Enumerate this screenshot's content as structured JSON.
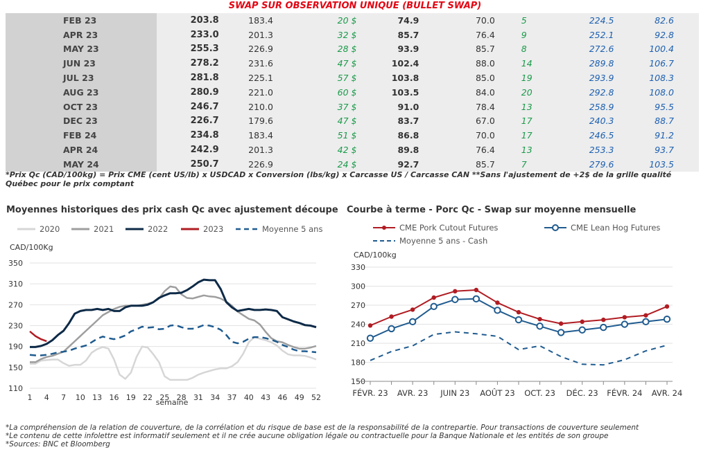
{
  "swap": {
    "title": "SWAP SUR OBSERVATION UNIQUE (BULLET SWAP)",
    "rows": [
      [
        "FEB 23",
        "203.8",
        "183.4",
        "20 $",
        "74.9",
        "70.0",
        "5",
        "224.5",
        "82.6"
      ],
      [
        "APR 23",
        "233.0",
        "201.3",
        "32 $",
        "85.7",
        "76.4",
        "9",
        "252.1",
        "92.8"
      ],
      [
        "MAY 23",
        "255.3",
        "226.9",
        "28 $",
        "93.9",
        "85.7",
        "8",
        "272.6",
        "100.4"
      ],
      [
        "JUN 23",
        "278.2",
        "231.6",
        "47 $",
        "102.4",
        "88.0",
        "14",
        "289.8",
        "106.7"
      ],
      [
        "JUL 23",
        "281.8",
        "225.1",
        "57 $",
        "103.8",
        "85.0",
        "19",
        "293.9",
        "108.3"
      ],
      [
        "AUG 23",
        "280.9",
        "221.0",
        "60 $",
        "103.5",
        "84.0",
        "20",
        "292.8",
        "108.0"
      ],
      [
        "OCT 23",
        "246.7",
        "210.0",
        "37 $",
        "91.0",
        "78.4",
        "13",
        "258.9",
        "95.5"
      ],
      [
        "DEC 23",
        "226.7",
        "179.6",
        "47 $",
        "83.7",
        "67.0",
        "17",
        "240.3",
        "88.7"
      ],
      [
        "FEB 24",
        "234.8",
        "183.4",
        "51 $",
        "86.8",
        "70.0",
        "17",
        "246.5",
        "91.2"
      ],
      [
        "APR 24",
        "242.9",
        "201.3",
        "42 $",
        "89.8",
        "76.4",
        "13",
        "253.3",
        "93.7"
      ],
      [
        "MAY 24",
        "250.7",
        "226.9",
        "24 $",
        "92.7",
        "85.7",
        "7",
        "279.6",
        "103.5"
      ]
    ],
    "note": "*Prix Qc (CAD/100kg) = Prix CME (cent US/lb) x USDCAD x Conversion (lbs/kg) x Carcasse US / Carcasse CAN **Sans l'ajustement de +2$ de la grille qualité Québec pour le prix comptant"
  },
  "disclaimer": [
    "*La compréhension de la relation de couverture, de la corrélation et du risque de base est de la responsabilité de la contrepartie. Pour transactions de couverture seulement",
    "*Le contenu de cette infolettre est informatif seulement et il ne crée aucune obligation légale ou contractuelle pour la Banque Nationale et les entités de son groupe",
    "*Sources: BNC et Bloomberg"
  ],
  "chart_data": [
    {
      "type": "line",
      "title": "Moyennes historiques des prix cash Qc avec ajustement découpe",
      "ylabel": "CAD/100Kg",
      "xlabel": "semaine",
      "ylim": [
        110,
        350
      ],
      "yticks": [
        110,
        150,
        190,
        230,
        270,
        310,
        350
      ],
      "xticks": [
        1,
        4,
        7,
        10,
        13,
        16,
        19,
        22,
        25,
        28,
        31,
        34,
        37,
        40,
        43,
        46,
        49,
        52
      ],
      "xlim": [
        1,
        52
      ],
      "grid": true,
      "legend_position": "top",
      "series": [
        {
          "name": "2020",
          "color": "#d6d6d6",
          "dash": false,
          "x": [
            1,
            2,
            3,
            4,
            5,
            6,
            7,
            8,
            9,
            10,
            11,
            12,
            13,
            14,
            15,
            16,
            17,
            18,
            19,
            20,
            21,
            22,
            23,
            24,
            25,
            26,
            27,
            28,
            29,
            30,
            31,
            32,
            33,
            34,
            35,
            36,
            37,
            38,
            39,
            40,
            41,
            42,
            43,
            44,
            45,
            46,
            47,
            48,
            49,
            50,
            51,
            52
          ],
          "y": [
            157,
            157,
            163,
            164,
            165,
            165,
            158,
            153,
            155,
            155,
            163,
            178,
            185,
            189,
            186,
            165,
            136,
            128,
            140,
            170,
            190,
            188,
            175,
            160,
            133,
            126,
            126,
            126,
            126,
            130,
            136,
            140,
            143,
            146,
            148,
            148,
            152,
            160,
            176,
            198,
            208,
            205,
            202,
            198,
            192,
            182,
            175,
            173,
            173,
            172,
            169,
            165
          ]
        },
        {
          "name": "2021",
          "color": "#9e9e9e",
          "dash": false,
          "x": [
            1,
            2,
            3,
            4,
            5,
            6,
            7,
            8,
            9,
            10,
            11,
            12,
            13,
            14,
            15,
            16,
            17,
            18,
            19,
            20,
            21,
            22,
            23,
            24,
            25,
            26,
            27,
            28,
            29,
            30,
            31,
            32,
            33,
            34,
            35,
            36,
            37,
            38,
            39,
            40,
            41,
            42,
            43,
            44,
            45,
            46,
            47,
            48,
            49,
            50,
            51,
            52
          ],
          "y": [
            160,
            160,
            166,
            170,
            172,
            176,
            180,
            190,
            200,
            210,
            220,
            230,
            240,
            250,
            256,
            262,
            266,
            268,
            268,
            268,
            270,
            272,
            275,
            282,
            296,
            305,
            303,
            290,
            283,
            282,
            285,
            288,
            286,
            285,
            282,
            276,
            268,
            257,
            250,
            243,
            240,
            232,
            218,
            206,
            200,
            198,
            193,
            189,
            186,
            186,
            188,
            191
          ]
        },
        {
          "name": "2022",
          "color": "#0d2a47",
          "dash": false,
          "x": [
            1,
            2,
            3,
            4,
            5,
            6,
            7,
            8,
            9,
            10,
            11,
            12,
            13,
            14,
            15,
            16,
            17,
            18,
            19,
            20,
            21,
            22,
            23,
            24,
            25,
            26,
            27,
            28,
            29,
            30,
            31,
            32,
            33,
            34,
            35,
            36,
            37,
            38,
            39,
            40,
            41,
            42,
            43,
            44,
            45,
            46,
            47,
            48,
            49,
            50,
            51,
            52
          ],
          "y": [
            189,
            189,
            191,
            195,
            202,
            212,
            220,
            235,
            253,
            258,
            260,
            260,
            262,
            260,
            262,
            258,
            258,
            265,
            268,
            268,
            268,
            270,
            275,
            283,
            288,
            292,
            292,
            293,
            298,
            305,
            313,
            318,
            317,
            317,
            300,
            275,
            265,
            258,
            260,
            262,
            260,
            260,
            261,
            260,
            258,
            246,
            242,
            238,
            235,
            231,
            230,
            227
          ]
        },
        {
          "name": "2023",
          "color": "#b01c22",
          "dash": false,
          "x": [
            1,
            2,
            3,
            4
          ],
          "y": [
            219,
            210,
            204,
            200
          ]
        },
        {
          "name": "Moyenne 5 ans",
          "color": "#1f5b8f",
          "dash": true,
          "x": [
            1,
            2,
            3,
            4,
            5,
            6,
            7,
            8,
            9,
            10,
            11,
            12,
            13,
            14,
            15,
            16,
            17,
            18,
            19,
            20,
            21,
            22,
            23,
            24,
            25,
            26,
            27,
            28,
            29,
            30,
            31,
            32,
            33,
            34,
            35,
            36,
            37,
            38,
            39,
            40,
            41,
            42,
            43,
            44,
            45,
            46,
            47,
            48,
            49,
            50,
            51,
            52
          ],
          "y": [
            174,
            173,
            173,
            174,
            176,
            179,
            180,
            182,
            186,
            189,
            192,
            198,
            205,
            209,
            206,
            204,
            207,
            211,
            219,
            223,
            228,
            226,
            227,
            223,
            224,
            230,
            231,
            227,
            224,
            224,
            227,
            231,
            230,
            227,
            222,
            212,
            199,
            196,
            199,
            205,
            208,
            208,
            206,
            203,
            199,
            193,
            189,
            184,
            181,
            181,
            180,
            179
          ]
        }
      ]
    },
    {
      "type": "line",
      "title": "Courbe à terme - Porc Qc - Swap sur moyenne mensuelle",
      "ylabel": "CAD/100kg",
      "ylim": [
        150,
        330
      ],
      "yticks": [
        150,
        180,
        210,
        240,
        270,
        300,
        330
      ],
      "categories": [
        "FÉVR. 23",
        "",
        "AVR. 23",
        "",
        "JUIN 23",
        "",
        "AOÛT 23",
        "",
        "OCT. 23",
        "",
        "DÉC. 23",
        "",
        "FÉVR. 24",
        "",
        "AVR. 24"
      ],
      "grid": true,
      "legend_position": "top",
      "series": [
        {
          "name": "CME Pork Cutout Futures",
          "color": "#b01c22",
          "marker": "dot",
          "values": [
            238,
            252,
            263,
            282,
            292,
            294,
            274,
            259,
            248,
            241,
            244,
            247,
            251,
            254,
            268
          ]
        },
        {
          "name": "CME Lean Hog Futures",
          "color": "#1f5b8f",
          "marker": "circle",
          "values": [
            218,
            233,
            244,
            268,
            279,
            280,
            262,
            247,
            237,
            227,
            231,
            235,
            240,
            244,
            248
          ]
        },
        {
          "name": "Moyenne 5 ans - Cash",
          "color": "#1f5b8f",
          "dash": true,
          "values": [
            183,
            197,
            206,
            224,
            228,
            225,
            221,
            200,
            206,
            189,
            177,
            176,
            184,
            198,
            207
          ]
        }
      ]
    }
  ]
}
